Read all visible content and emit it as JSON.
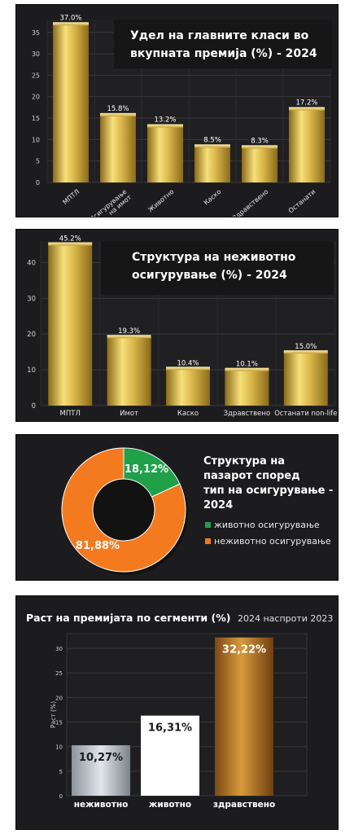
{
  "colors": {
    "panel_bg": "#1c1c1e",
    "gold_light": "#f6e07a",
    "gold_dark": "#8a6a1a",
    "green": "#21a04a",
    "orange": "#f47a20",
    "white": "#ffffff"
  },
  "chart_data": [
    {
      "type": "bar",
      "title": "Удел на главните класи во вкупната премија (%) - 2024",
      "title_lines": [
        "Удел на главните класи во",
        "вкупната премија (%) - 2024"
      ],
      "categories": [
        "МПТЛ",
        "Осигурување на имот",
        "Животно",
        "Каско",
        "Здравствено",
        "Останати"
      ],
      "category_lines": [
        [
          "МПТЛ"
        ],
        [
          "Осигурување",
          "на имот"
        ],
        [
          "Животно"
        ],
        [
          "Каско"
        ],
        [
          "Здравствено"
        ],
        [
          "Останати"
        ]
      ],
      "values": [
        37.0,
        15.8,
        13.2,
        8.5,
        8.3,
        17.2
      ],
      "value_labels": [
        "37.0%",
        "15.8%",
        "13.2%",
        "8.5%",
        "8.3%",
        "17.2%"
      ],
      "yticks": [
        "0",
        "5",
        "10",
        "15",
        "20",
        "25",
        "30",
        "35"
      ],
      "ylim": [
        0,
        38
      ],
      "grid": true,
      "legend": "none"
    },
    {
      "type": "bar",
      "title": "Структура на неживотно осигурување (%) - 2024",
      "title_lines": [
        "Структура на неживотно",
        "осигурување (%) - 2024"
      ],
      "categories": [
        "МПТЛ",
        "Имот",
        "Каско",
        "Здравствено",
        "Останати non-life"
      ],
      "values": [
        45.2,
        19.3,
        10.4,
        10.1,
        15.0
      ],
      "value_labels": [
        "45.2%",
        "19.3%",
        "10.4%",
        "10.1%",
        "15.0%"
      ],
      "yticks": [
        "0",
        "10",
        "20",
        "30",
        "40"
      ],
      "ylim": [
        0,
        46
      ],
      "grid": true,
      "legend": "none"
    },
    {
      "type": "pie",
      "title": "Структура на пазарот според тип на осигурување - 2024",
      "title_lines": [
        "Структура на",
        "пазарот според",
        "тип на осигурување -",
        "2024"
      ],
      "categories": [
        "животно осигурување",
        "неживотно осигурување"
      ],
      "values": [
        18.12,
        81.88
      ],
      "value_labels": [
        "18,12%",
        "81,88%"
      ],
      "legend": "right"
    },
    {
      "type": "bar",
      "title": "Раст на премијата по сегменти (%)",
      "subtitle": "2024 наспроти 2023",
      "ylabel": "Раст (%)",
      "categories": [
        "неживотно",
        "животно",
        "здравствено"
      ],
      "values": [
        10.27,
        16.31,
        32.22
      ],
      "value_labels": [
        "10,27%",
        "16,31%",
        "32,22%"
      ],
      "yticks": [
        "0",
        "5",
        "10",
        "15",
        "20",
        "25",
        "30"
      ],
      "ylim": [
        0,
        33
      ],
      "grid": true,
      "legend": "none"
    }
  ]
}
